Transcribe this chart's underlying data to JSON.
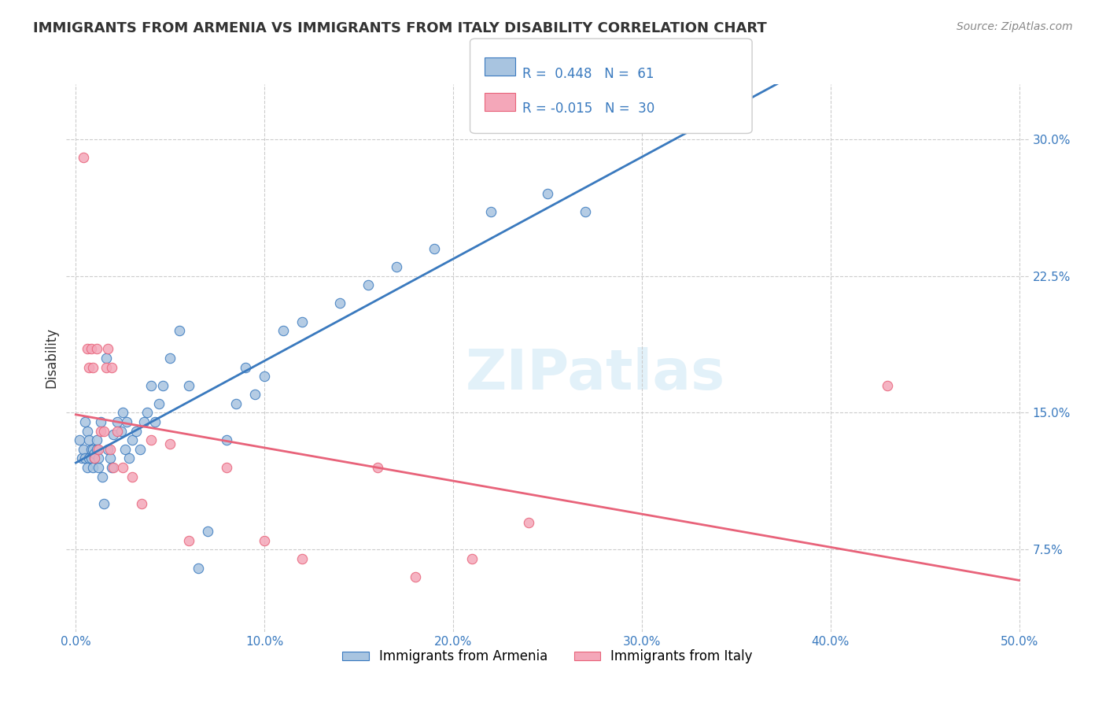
{
  "title": "IMMIGRANTS FROM ARMENIA VS IMMIGRANTS FROM ITALY DISABILITY CORRELATION CHART",
  "source": "Source: ZipAtlas.com",
  "xlabel_ticks": [
    "0.0%",
    "10.0%",
    "20.0%",
    "30.0%",
    "40.0%",
    "50.0%"
  ],
  "xlabel_vals": [
    0.0,
    0.1,
    0.2,
    0.3,
    0.4,
    0.5
  ],
  "ylabel_ticks": [
    "7.5%",
    "15.0%",
    "22.5%",
    "30.0%"
  ],
  "ylabel_vals": [
    0.075,
    0.15,
    0.225,
    0.3
  ],
  "ylabel_label": "Disability",
  "xlim": [
    0.0,
    0.5
  ],
  "ylim": [
    0.03,
    0.33
  ],
  "armenia_R": 0.448,
  "armenia_N": 61,
  "italy_R": -0.015,
  "italy_N": 30,
  "armenia_color": "#a8c4e0",
  "italy_color": "#f4a7b9",
  "armenia_line_color": "#3a7abf",
  "italy_line_color": "#e8637a",
  "watermark": "ZIPatlas",
  "armenia_x": [
    0.002,
    0.003,
    0.004,
    0.005,
    0.005,
    0.006,
    0.006,
    0.007,
    0.007,
    0.008,
    0.008,
    0.009,
    0.009,
    0.01,
    0.01,
    0.011,
    0.011,
    0.012,
    0.012,
    0.013,
    0.014,
    0.015,
    0.016,
    0.017,
    0.018,
    0.019,
    0.02,
    0.022,
    0.024,
    0.025,
    0.026,
    0.027,
    0.028,
    0.03,
    0.032,
    0.034,
    0.036,
    0.038,
    0.04,
    0.042,
    0.044,
    0.046,
    0.05,
    0.055,
    0.06,
    0.065,
    0.07,
    0.08,
    0.085,
    0.09,
    0.095,
    0.1,
    0.11,
    0.12,
    0.14,
    0.155,
    0.17,
    0.19,
    0.22,
    0.25,
    0.27
  ],
  "armenia_y": [
    0.135,
    0.125,
    0.13,
    0.125,
    0.145,
    0.14,
    0.12,
    0.125,
    0.135,
    0.13,
    0.125,
    0.12,
    0.13,
    0.125,
    0.128,
    0.135,
    0.13,
    0.12,
    0.125,
    0.145,
    0.115,
    0.1,
    0.18,
    0.13,
    0.125,
    0.12,
    0.138,
    0.145,
    0.14,
    0.15,
    0.13,
    0.145,
    0.125,
    0.135,
    0.14,
    0.13,
    0.145,
    0.15,
    0.165,
    0.145,
    0.155,
    0.165,
    0.18,
    0.195,
    0.165,
    0.065,
    0.085,
    0.135,
    0.155,
    0.175,
    0.16,
    0.17,
    0.195,
    0.2,
    0.21,
    0.22,
    0.23,
    0.24,
    0.26,
    0.27,
    0.26
  ],
  "italy_x": [
    0.004,
    0.006,
    0.007,
    0.008,
    0.009,
    0.01,
    0.011,
    0.012,
    0.013,
    0.015,
    0.016,
    0.017,
    0.018,
    0.019,
    0.02,
    0.022,
    0.025,
    0.03,
    0.035,
    0.04,
    0.05,
    0.06,
    0.08,
    0.1,
    0.12,
    0.16,
    0.18,
    0.21,
    0.24,
    0.43
  ],
  "italy_y": [
    0.29,
    0.185,
    0.175,
    0.185,
    0.175,
    0.125,
    0.185,
    0.13,
    0.14,
    0.14,
    0.175,
    0.185,
    0.13,
    0.175,
    0.12,
    0.14,
    0.12,
    0.115,
    0.1,
    0.135,
    0.133,
    0.08,
    0.12,
    0.08,
    0.07,
    0.12,
    0.06,
    0.07,
    0.09,
    0.165
  ]
}
